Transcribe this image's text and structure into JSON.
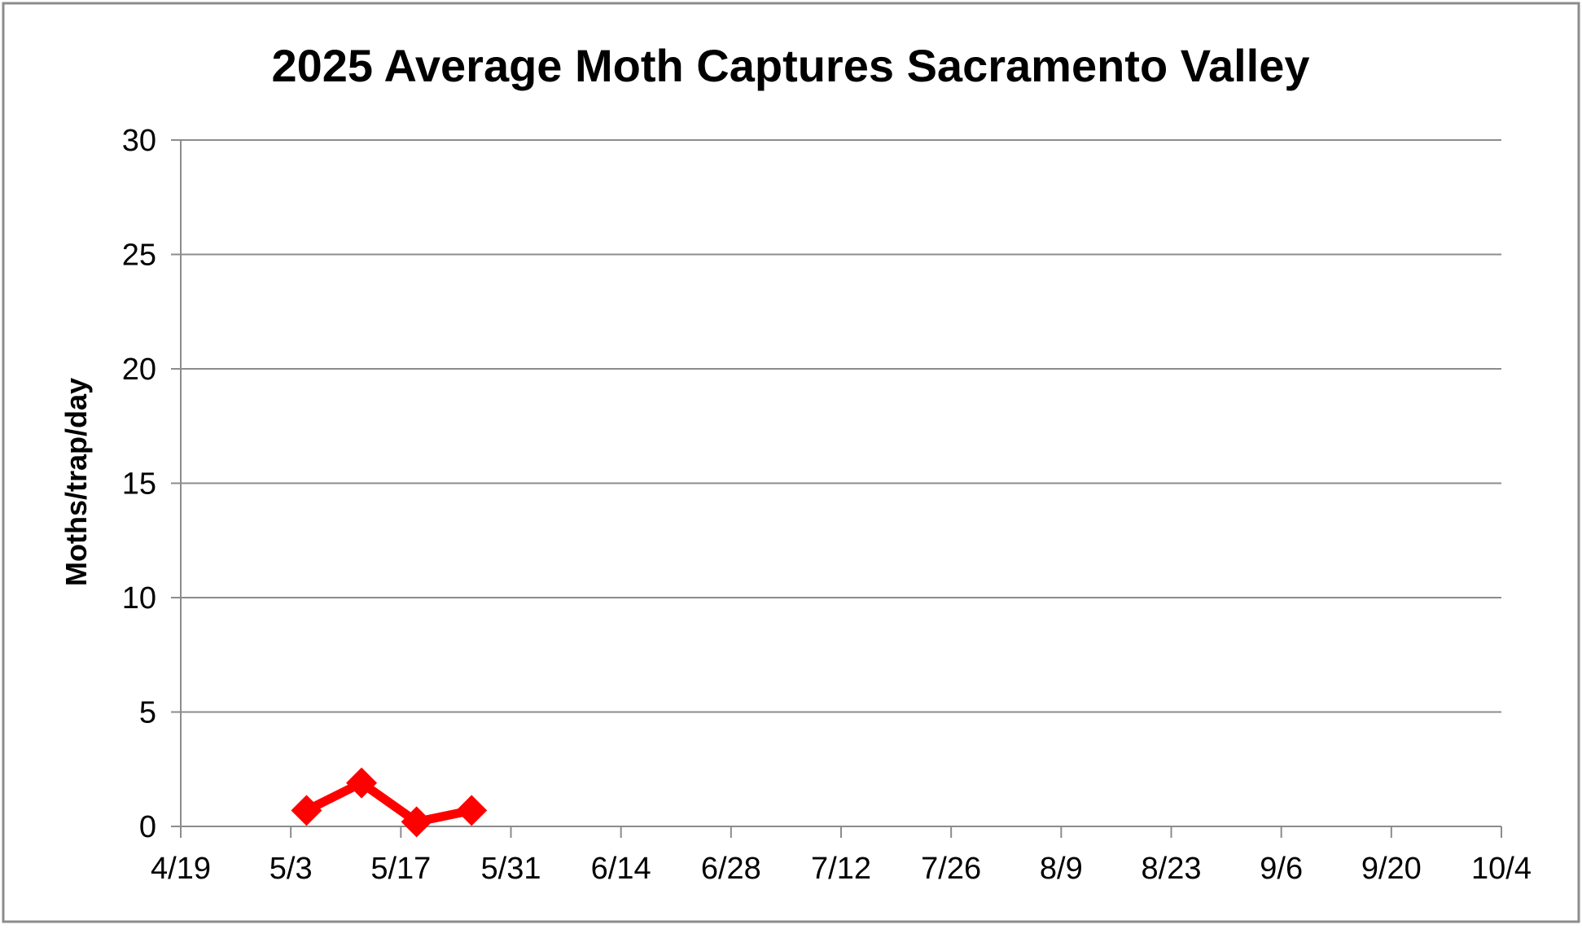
{
  "chart_data": {
    "type": "line",
    "title": "2025 Average Moth Captures Sacramento Valley",
    "xlabel": "",
    "ylabel": "Moths/trap/day",
    "x_ticks": [
      "4/19",
      "5/3",
      "5/17",
      "5/31",
      "6/14",
      "6/28",
      "7/12",
      "7/26",
      "8/9",
      "8/23",
      "9/6",
      "9/20",
      "10/4"
    ],
    "xlim": [
      "2025-04-19",
      "2025-10-04"
    ],
    "y_ticks": [
      0,
      5,
      10,
      15,
      20,
      25,
      30
    ],
    "ylim": [
      0,
      30
    ],
    "grid": "horizontal",
    "legend": "none",
    "series": [
      {
        "color": "#ff0000",
        "marker": "diamond",
        "points": [
          {
            "x": "2025-05-05",
            "y": 0.7
          },
          {
            "x": "2025-05-12",
            "y": 1.9
          },
          {
            "x": "2025-05-19",
            "y": 0.2
          },
          {
            "x": "2025-05-26",
            "y": 0.7
          }
        ]
      }
    ]
  }
}
